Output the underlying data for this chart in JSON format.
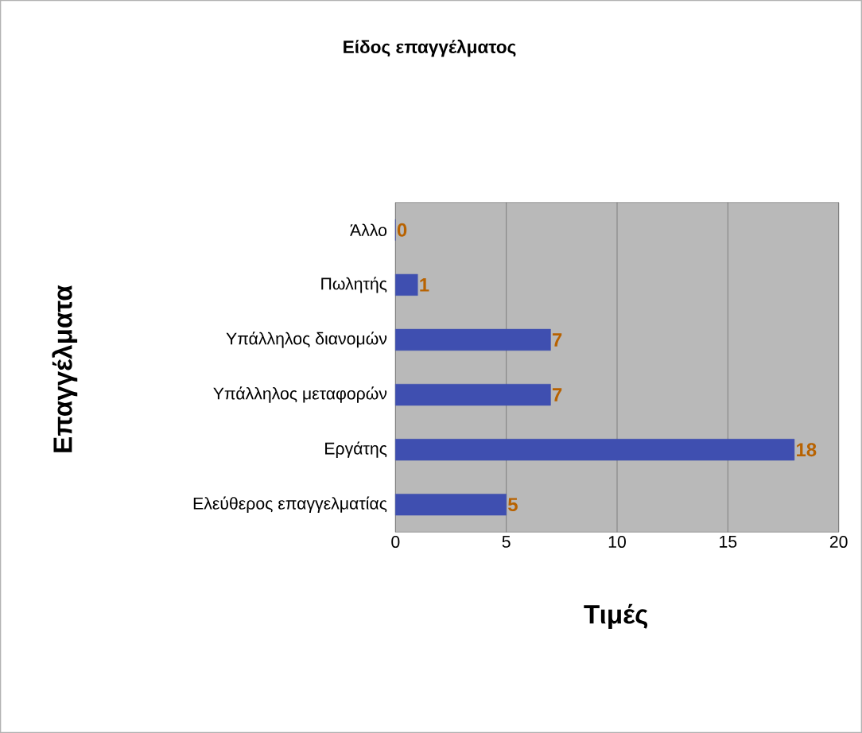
{
  "chart_data": {
    "type": "bar",
    "orientation": "horizontal",
    "title": "Είδος επαγγέλματος",
    "xlabel": "Τιμές",
    "ylabel": "Επαγγέλματα",
    "categories": [
      "Άλλο",
      "Πωλητής",
      "Υπάλληλος διανομών",
      "Υπάλληλος μεταφορών",
      "Εργάτης",
      "Ελεύθερος επαγγελματίας"
    ],
    "values": [
      0,
      1,
      7,
      7,
      18,
      5
    ],
    "color": "#3f4fb0",
    "xlim": [
      0,
      20
    ],
    "xticks": [
      0,
      5,
      10,
      15,
      20
    ],
    "grid": "x",
    "data_labels": true
  }
}
